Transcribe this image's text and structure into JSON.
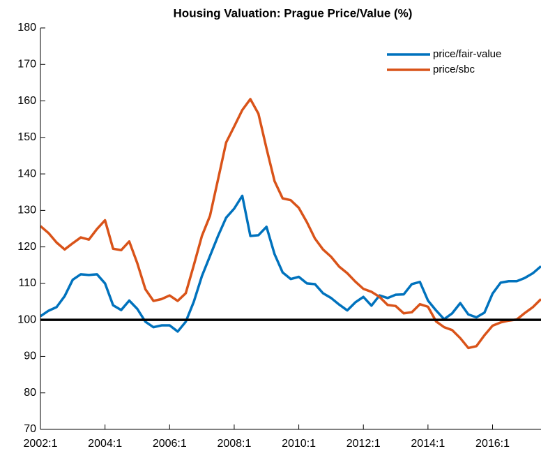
{
  "chart_data": {
    "type": "line",
    "title": "Housing Valuation: Prague Price/Value (%)",
    "x": [
      2002,
      2002.25,
      2002.5,
      2002.75,
      2003,
      2003.25,
      2003.5,
      2003.75,
      2004,
      2004.25,
      2004.5,
      2004.75,
      2005,
      2005.25,
      2005.5,
      2005.75,
      2006,
      2006.25,
      2006.5,
      2006.75,
      2007,
      2007.25,
      2007.5,
      2007.75,
      2008,
      2008.25,
      2008.5,
      2008.75,
      2009,
      2009.25,
      2009.5,
      2009.75,
      2010,
      2010.25,
      2010.5,
      2010.75,
      2011,
      2011.25,
      2011.5,
      2011.75,
      2012,
      2012.25,
      2012.5,
      2012.75,
      2013,
      2013.25,
      2013.5,
      2013.75,
      2014,
      2014.25,
      2014.5,
      2014.75,
      2015,
      2015.25,
      2015.5,
      2015.75,
      2016,
      2016.25,
      2016.5,
      2016.75,
      2017,
      2017.25,
      2017.5
    ],
    "series": [
      {
        "name": "price/fair-value",
        "color": "#0072bd",
        "values": [
          101,
          102.5,
          103.5,
          106.5,
          111,
          112.5,
          112.3,
          112.5,
          110,
          104,
          102.7,
          105.3,
          103,
          99.5,
          98,
          98.5,
          98.5,
          96.8,
          99.5,
          105,
          112,
          117.5,
          123,
          128,
          130.5,
          134,
          123,
          123.2,
          125.5,
          118,
          113,
          111.2,
          111.8,
          110,
          109.8,
          107.3,
          106,
          104.2,
          102.6,
          104.8,
          106.3,
          103.9,
          106.7,
          106,
          106.9,
          107,
          109.8,
          110.4,
          105.3,
          102.6,
          100.2,
          101.8,
          104.6,
          101.5,
          100.7,
          102,
          107.2,
          110.2,
          110.6,
          110.6,
          111.5,
          112.8,
          114.7
        ]
      },
      {
        "name": "price/sbc",
        "color": "#d95319",
        "values": [
          125.7,
          123.8,
          121.2,
          119.3,
          121,
          122.6,
          122,
          124.9,
          127.3,
          119.5,
          119.1,
          121.5,
          115.5,
          108.4,
          105.2,
          105.7,
          106.7,
          105.2,
          107.3,
          115,
          123,
          128.5,
          138.5,
          148.6,
          153,
          157.5,
          160.5,
          156.5,
          147,
          138,
          133.3,
          132.8,
          130.7,
          126.8,
          122.3,
          119.3,
          117.3,
          114.6,
          112.8,
          110.5,
          108.5,
          107.7,
          106.3,
          104.1,
          103.8,
          101.8,
          102.1,
          104.3,
          103.6,
          99.6,
          98,
          97.2,
          95,
          92.3,
          92.8,
          95.8,
          98.4,
          99.3,
          99.8,
          100.1,
          101.9,
          103.5,
          105.7
        ]
      }
    ],
    "hline": 100,
    "xlim": [
      2002,
      2017.5
    ],
    "xticks": [
      {
        "value": 2002,
        "label": "2002:1"
      },
      {
        "value": 2004,
        "label": "2004:1"
      },
      {
        "value": 2006,
        "label": "2006:1"
      },
      {
        "value": 2008,
        "label": "2008:1"
      },
      {
        "value": 2010,
        "label": "2010:1"
      },
      {
        "value": 2012,
        "label": "2012:1"
      },
      {
        "value": 2014,
        "label": "2014:1"
      },
      {
        "value": 2016,
        "label": "2016:1"
      }
    ],
    "ylim": [
      70,
      180
    ],
    "yticks": [
      70,
      80,
      90,
      100,
      110,
      120,
      130,
      140,
      150,
      160,
      170,
      180
    ],
    "legend": "upper right",
    "grid": false
  }
}
